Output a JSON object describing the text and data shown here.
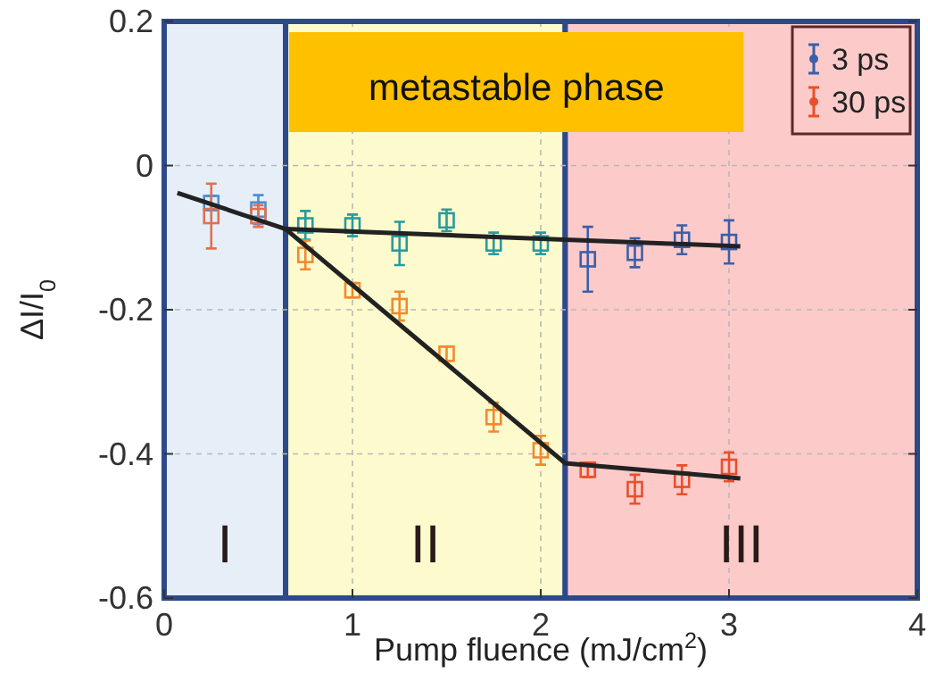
{
  "chart_data": {
    "type": "scatter",
    "xlabel": "Pump fluence (mJ/cm$^{2}$)",
    "ylabel": "ΔI/I$_{0}$",
    "xlim": [
      0,
      4
    ],
    "ylim": [
      -0.6,
      0.2
    ],
    "xticks": [
      0,
      1,
      2,
      3,
      4
    ],
    "yticks": [
      -0.6,
      -0.4,
      -0.2,
      0,
      0.2
    ],
    "grid": true,
    "legend": "top right",
    "marker": "square",
    "annotations": [
      "metastable phase"
    ],
    "bands": [
      {
        "axis": "x",
        "from": 0,
        "to": 0.645,
        "label": "I",
        "color": "#e6eff8"
      },
      {
        "axis": "x",
        "from": 0.645,
        "to": 2.13,
        "label": "II",
        "color": "#fdfbcd"
      },
      {
        "axis": "x",
        "from": 2.13,
        "to": 4,
        "label": "III",
        "color": "#fdcaca"
      }
    ],
    "series": [
      {
        "name": "3 ps",
        "color": "#3b5fa8",
        "x": [
          0.25,
          0.5,
          0.75,
          1,
          1.25,
          1.5,
          1.75,
          2,
          2.25,
          2.5,
          2.75,
          3
        ],
        "values": [
          -0.052,
          -0.061,
          -0.083,
          -0.083,
          -0.108,
          -0.076,
          -0.108,
          -0.108,
          -0.13,
          -0.121,
          -0.103,
          -0.106
        ],
        "errors": [
          0.01,
          0.02,
          0.02,
          0.015,
          0.03,
          0.015,
          0.015,
          0.015,
          0.045,
          0.02,
          0.02,
          0.03
        ],
        "colors": [
          "#4a8fd0",
          "#4a8fd0",
          "#2a9a9e",
          "#2a9a9e",
          "#2a9a9e",
          "#2a9a9e",
          "#2a9a9e",
          "#2a9a9e",
          "#3b5fa8",
          "#3b5fa8",
          "#3b5fa8",
          "#3b5fa8"
        ]
      },
      {
        "name": "30 ps",
        "color": "#e8502a",
        "x": [
          0.25,
          0.5,
          0.75,
          1,
          1.25,
          1.5,
          1.75,
          2,
          2.25,
          2.5,
          2.75,
          3
        ],
        "values": [
          -0.07,
          -0.07,
          -0.124,
          -0.173,
          -0.195,
          -0.261,
          -0.349,
          -0.395,
          -0.422,
          -0.449,
          -0.436,
          -0.418
        ],
        "errors": [
          0.045,
          0.015,
          0.02,
          0.01,
          0.02,
          0.01,
          0.02,
          0.02,
          0.01,
          0.02,
          0.02,
          0.02
        ],
        "colors": [
          "#e07050",
          "#e07050",
          "#f08a30",
          "#f08a30",
          "#f08a30",
          "#f08a30",
          "#f08a30",
          "#f08a30",
          "#e8502a",
          "#e8502a",
          "#e8502a",
          "#e8502a"
        ]
      },
      {
        "type": "line",
        "color": "#222222",
        "marker": "none",
        "x": [
          0.07,
          0.645,
          3.06
        ],
        "values": [
          -0.038,
          -0.088,
          -0.112
        ]
      },
      {
        "type": "line",
        "color": "#222222",
        "marker": "none",
        "x": [
          0.645,
          2.13,
          3.06
        ],
        "values": [
          -0.088,
          -0.413,
          -0.434
        ]
      }
    ]
  }
}
